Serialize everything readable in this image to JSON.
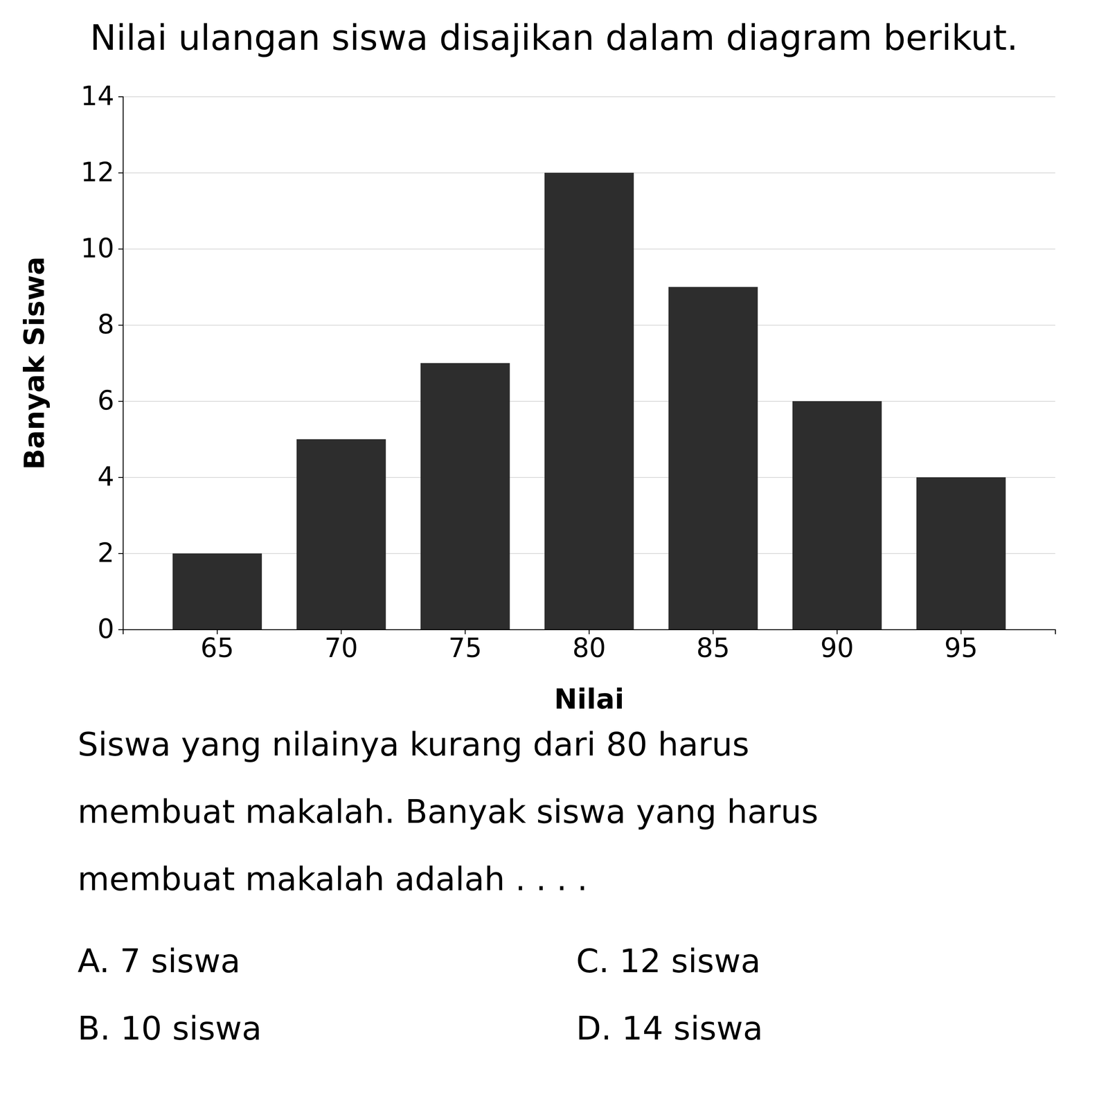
{
  "chart_data": {
    "type": "bar",
    "title": "Nilai ulangan siswa disajikan dalam diagram berikut.",
    "categories": [
      65,
      70,
      75,
      80,
      85,
      90,
      95
    ],
    "values": [
      2,
      5,
      7,
      12,
      9,
      6,
      4
    ],
    "color": "#2d2d2d",
    "xlabel": "Nilai",
    "ylabel": "Banyak Siswa",
    "ylim": [
      0,
      14
    ],
    "yticks": [
      0,
      2,
      4,
      6,
      8,
      10,
      12,
      14
    ],
    "grid": true,
    "annotations": [
      "Siswa yang nilainya kurang dari 80 harus",
      "membuat makalah. Banyak siswa yang harus",
      "membuat makalah adalah . . . .",
      "A.   7 siswa",
      "B.   10 siswa",
      "C.   12 siswa",
      "D.   14 siswa"
    ]
  }
}
